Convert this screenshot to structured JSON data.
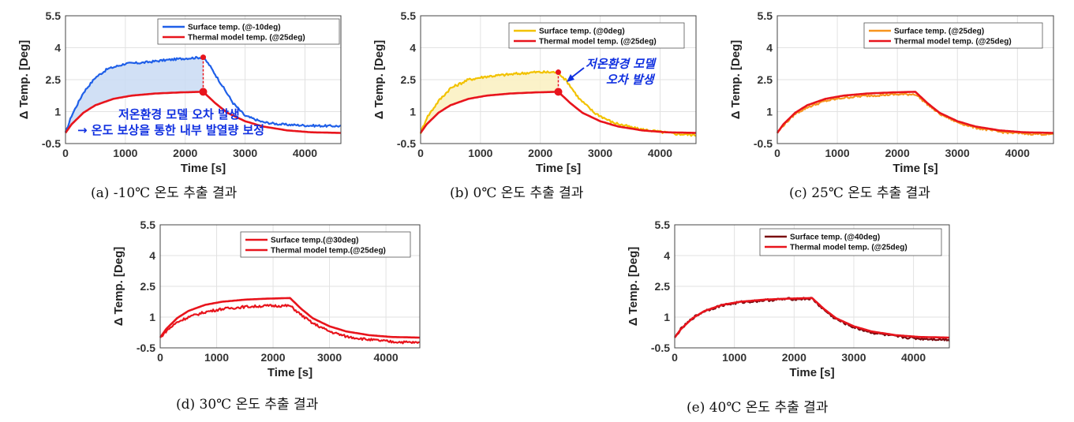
{
  "figure": {
    "panels": [
      {
        "id": "a",
        "caption": "(a)  -10℃  온도  추출  결과",
        "legend": [
          "Surface temp. (@-10deg)",
          "Thermal model temp. (@25deg)"
        ],
        "annotation": [
          "저온환경 모델 오차 발생",
          "→ 온도 보상을 통한 내부 발열량 보정"
        ]
      },
      {
        "id": "b",
        "caption": "(b)  0℃  온도  추출  결과",
        "legend": [
          "Surface temp. (@0deg)",
          "Thermal model temp. (@25deg)"
        ],
        "annotation": [
          "저온환경 모델",
          "오차 발생"
        ]
      },
      {
        "id": "c",
        "caption": "(c)  25℃  온도  추출  결과",
        "legend": [
          "Surface temp. (@25deg)",
          "Thermal model temp. (@25deg)"
        ]
      },
      {
        "id": "d",
        "caption": "(d)  30℃  온도  추출  결과",
        "legend": [
          "Surface temp.(@30deg)",
          "Thermal model temp.(@25deg)"
        ]
      },
      {
        "id": "e",
        "caption": "(e)  40℃  온도  추출  결과",
        "legend": [
          "Surface temp. (@40deg)",
          "Thermal model temp. (@25deg)"
        ]
      }
    ]
  },
  "chart_data": [
    {
      "type": "line",
      "title": "",
      "xlabel": "Time [s]",
      "ylabel": "Δ Temp. [Deg]",
      "xlim": [
        0,
        4600
      ],
      "ylim": [
        -0.5,
        5.5
      ],
      "xticks": [
        0,
        1000,
        2000,
        3000,
        4000
      ],
      "yticks": [
        -0.5,
        1,
        2.5,
        4,
        5.5
      ],
      "grid": true,
      "legend_position": "top-right",
      "series": [
        {
          "name": "Surface temp. (@-10deg)",
          "color": "#1f5fe8",
          "noise": 0.05,
          "shade": "#c9daf3",
          "x": [
            0,
            100,
            300,
            500,
            700,
            1000,
            1300,
            1600,
            2000,
            2300,
            2400,
            2600,
            2800,
            3000,
            3300,
            3600,
            4000,
            4300,
            4600
          ],
          "y": [
            0,
            0.8,
            1.9,
            2.6,
            3.0,
            3.25,
            3.3,
            3.4,
            3.5,
            3.55,
            3.2,
            2.3,
            1.4,
            0.8,
            0.5,
            0.4,
            0.35,
            0.33,
            0.32
          ]
        },
        {
          "name": "Thermal model temp. (@25deg)",
          "color": "#e8141c",
          "noise": 0,
          "x": [
            0,
            100,
            300,
            500,
            800,
            1100,
            1500,
            1900,
            2300,
            2500,
            2700,
            3000,
            3300,
            3700,
            4100,
            4600
          ],
          "y": [
            0,
            0.4,
            0.95,
            1.3,
            1.6,
            1.75,
            1.85,
            1.9,
            1.93,
            1.4,
            0.95,
            0.55,
            0.3,
            0.12,
            0.03,
            0.0
          ]
        }
      ]
    },
    {
      "type": "line",
      "title": "",
      "xlabel": "Time [s]",
      "ylabel": "Δ Temp. [Deg]",
      "xlim": [
        0,
        4600
      ],
      "ylim": [
        -0.5,
        5.5
      ],
      "xticks": [
        0,
        1000,
        2000,
        3000,
        4000
      ],
      "yticks": [
        -0.5,
        1,
        2.5,
        4,
        5.5
      ],
      "grid": true,
      "legend_position": "top-right",
      "series": [
        {
          "name": "Surface temp. (@0deg)",
          "color": "#f2c200",
          "noise": 0.06,
          "shade": "#faf0c0",
          "x": [
            0,
            100,
            300,
            500,
            800,
            1100,
            1500,
            1900,
            2300,
            2450,
            2650,
            2900,
            3200,
            3600,
            4000,
            4300,
            4600
          ],
          "y": [
            0,
            0.7,
            1.5,
            2.1,
            2.5,
            2.65,
            2.75,
            2.85,
            2.85,
            2.4,
            1.6,
            0.95,
            0.5,
            0.2,
            0.05,
            -0.05,
            -0.1
          ]
        },
        {
          "name": "Thermal model temp. (@25deg)",
          "color": "#e8141c",
          "noise": 0,
          "x": [
            0,
            100,
            300,
            500,
            800,
            1100,
            1500,
            1900,
            2300,
            2500,
            2700,
            3000,
            3300,
            3700,
            4100,
            4600
          ],
          "y": [
            0,
            0.4,
            0.95,
            1.3,
            1.6,
            1.75,
            1.85,
            1.9,
            1.93,
            1.4,
            0.95,
            0.55,
            0.3,
            0.12,
            0.03,
            0.0
          ]
        }
      ]
    },
    {
      "type": "line",
      "title": "",
      "xlabel": "Time [s]",
      "ylabel": "Δ Temp. [Deg]",
      "xlim": [
        0,
        4600
      ],
      "ylim": [
        -0.5,
        5.5
      ],
      "xticks": [
        0,
        1000,
        2000,
        3000,
        4000
      ],
      "yticks": [
        -0.5,
        1,
        2.5,
        4,
        5.5
      ],
      "grid": true,
      "legend_position": "top-right",
      "series": [
        {
          "name": "Surface temp. (@25deg)",
          "color": "#f7941d",
          "noise": 0.05,
          "x": [
            0,
            100,
            300,
            500,
            800,
            1100,
            1500,
            1900,
            2300,
            2500,
            2700,
            3000,
            3300,
            3700,
            4100,
            4600
          ],
          "y": [
            0,
            0.35,
            0.9,
            1.2,
            1.5,
            1.65,
            1.75,
            1.8,
            1.82,
            1.35,
            0.9,
            0.5,
            0.25,
            0.05,
            -0.03,
            -0.07
          ]
        },
        {
          "name": "Thermal model temp. (@25deg)",
          "color": "#e8141c",
          "noise": 0,
          "x": [
            0,
            100,
            300,
            500,
            800,
            1100,
            1500,
            1900,
            2300,
            2500,
            2700,
            3000,
            3300,
            3700,
            4100,
            4600
          ],
          "y": [
            0,
            0.4,
            0.95,
            1.3,
            1.6,
            1.75,
            1.85,
            1.9,
            1.93,
            1.4,
            0.95,
            0.55,
            0.3,
            0.12,
            0.03,
            0.0
          ]
        }
      ]
    },
    {
      "type": "line",
      "title": "",
      "xlabel": "Time [s]",
      "ylabel": "Δ Temp. [Deg]",
      "xlim": [
        0,
        4600
      ],
      "ylim": [
        -0.5,
        5.5
      ],
      "xticks": [
        0,
        1000,
        2000,
        3000,
        4000
      ],
      "yticks": [
        -0.5,
        1,
        2.5,
        4,
        5.5
      ],
      "grid": true,
      "legend_position": "top-right",
      "series": [
        {
          "name": "Surface temp.(@30deg)",
          "color": "#e8141c",
          "noise": 0.06,
          "x": [
            0,
            100,
            300,
            500,
            800,
            1100,
            1500,
            1900,
            2300,
            2500,
            2700,
            3000,
            3300,
            3700,
            4100,
            4600
          ],
          "y": [
            0,
            0.3,
            0.75,
            1.0,
            1.25,
            1.4,
            1.5,
            1.55,
            1.55,
            1.1,
            0.7,
            0.3,
            0.05,
            -0.1,
            -0.2,
            -0.25
          ]
        },
        {
          "name": "Thermal model temp.(@25deg)",
          "color": "#e8141c",
          "noise": 0,
          "x": [
            0,
            100,
            300,
            500,
            800,
            1100,
            1500,
            1900,
            2300,
            2500,
            2700,
            3000,
            3300,
            3700,
            4100,
            4600
          ],
          "y": [
            0,
            0.4,
            0.95,
            1.3,
            1.6,
            1.75,
            1.85,
            1.9,
            1.93,
            1.4,
            0.95,
            0.55,
            0.3,
            0.12,
            0.03,
            0.0
          ]
        }
      ]
    },
    {
      "type": "line",
      "title": "",
      "xlabel": "Time [s]",
      "ylabel": "Δ Temp. [Deg]",
      "xlim": [
        0,
        4600
      ],
      "ylim": [
        -0.5,
        5.5
      ],
      "xticks": [
        0,
        1000,
        2000,
        3000,
        4000
      ],
      "yticks": [
        -0.5,
        1,
        2.5,
        4,
        5.5
      ],
      "grid": true,
      "legend_position": "top-right",
      "series": [
        {
          "name": "Surface temp. (@40deg)",
          "color": "#7a0a10",
          "noise": 0.06,
          "x": [
            0,
            100,
            300,
            500,
            800,
            1100,
            1500,
            1900,
            2300,
            2500,
            2700,
            3000,
            3300,
            3700,
            4100,
            4600
          ],
          "y": [
            0,
            0.4,
            0.95,
            1.3,
            1.58,
            1.72,
            1.82,
            1.88,
            1.9,
            1.35,
            0.9,
            0.5,
            0.25,
            0.05,
            -0.05,
            -0.1
          ]
        },
        {
          "name": "Thermal model temp. (@25deg)",
          "color": "#e8141c",
          "noise": 0,
          "x": [
            0,
            100,
            300,
            500,
            800,
            1100,
            1500,
            1900,
            2300,
            2500,
            2700,
            3000,
            3300,
            3700,
            4100,
            4600
          ],
          "y": [
            0,
            0.4,
            0.95,
            1.3,
            1.6,
            1.75,
            1.85,
            1.9,
            1.93,
            1.4,
            0.95,
            0.55,
            0.3,
            0.12,
            0.03,
            0.0
          ]
        }
      ]
    }
  ]
}
